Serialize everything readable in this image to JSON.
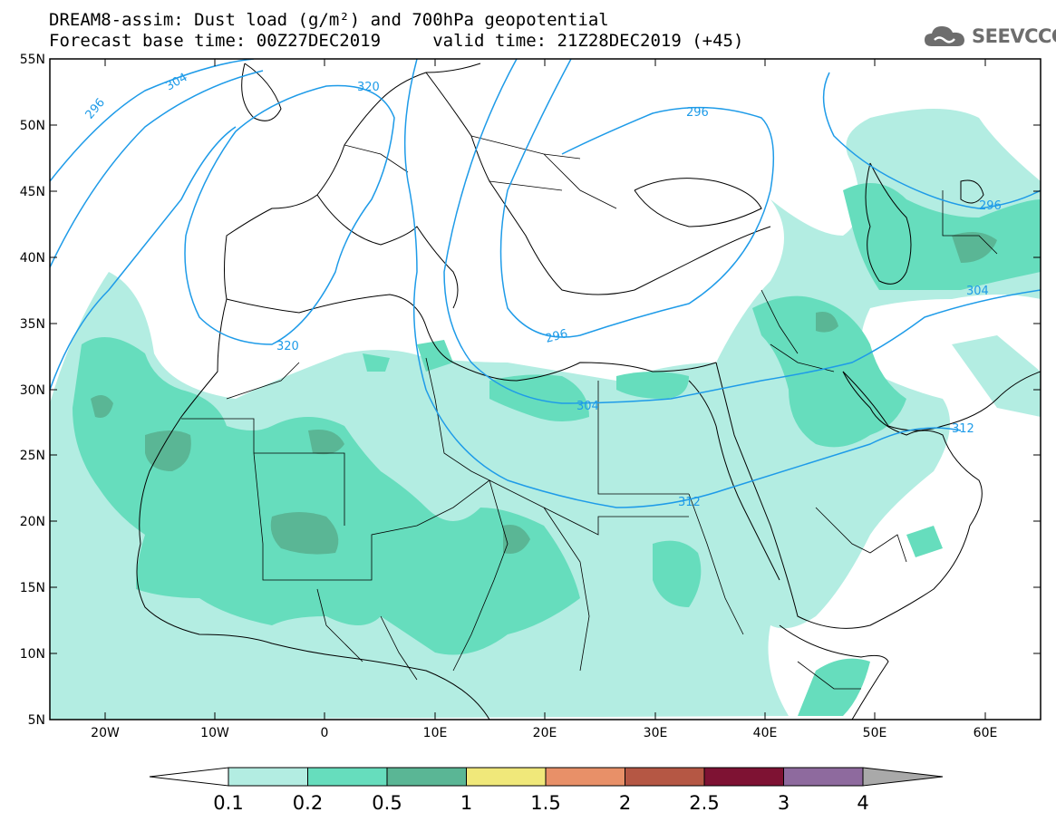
{
  "title": {
    "line1": "DREAM8-assim: Dust load (g/m²) and 700hPa geopotential",
    "line2": "Forecast base time: 00Z27DEC2019     valid time: 21Z28DEC2019 (+45)"
  },
  "logo": {
    "text": "SEEVCCC",
    "icon": "cloud-icon"
  },
  "axes": {
    "lat_labels": [
      "55N",
      "50N",
      "45N",
      "40N",
      "35N",
      "30N",
      "25N",
      "20N",
      "15N",
      "10N",
      "5N"
    ],
    "lon_labels": [
      "20W",
      "10W",
      "0",
      "10E",
      "20E",
      "30E",
      "40E",
      "50E",
      "60E"
    ],
    "lat_range": [
      5,
      55
    ],
    "lon_range": [
      -25,
      65
    ]
  },
  "colorbar": {
    "ticks": [
      "0.1",
      "0.2",
      "0.5",
      "1",
      "1.5",
      "2",
      "2.5",
      "3",
      "4"
    ],
    "colors": [
      "#b3ede2",
      "#66ddbd",
      "#5ab695",
      "#f0e87a",
      "#e89068",
      "#b55744",
      "#7e1233",
      "#8e6a9e"
    ],
    "arrow_low": "#ffffff",
    "arrow_high": "#a9a9a9"
  },
  "contours": {
    "color": "#1e9be8",
    "labels": [
      "296",
      "304",
      "320",
      "320",
      "296",
      "296",
      "304",
      "312",
      "296",
      "304",
      "312"
    ]
  }
}
